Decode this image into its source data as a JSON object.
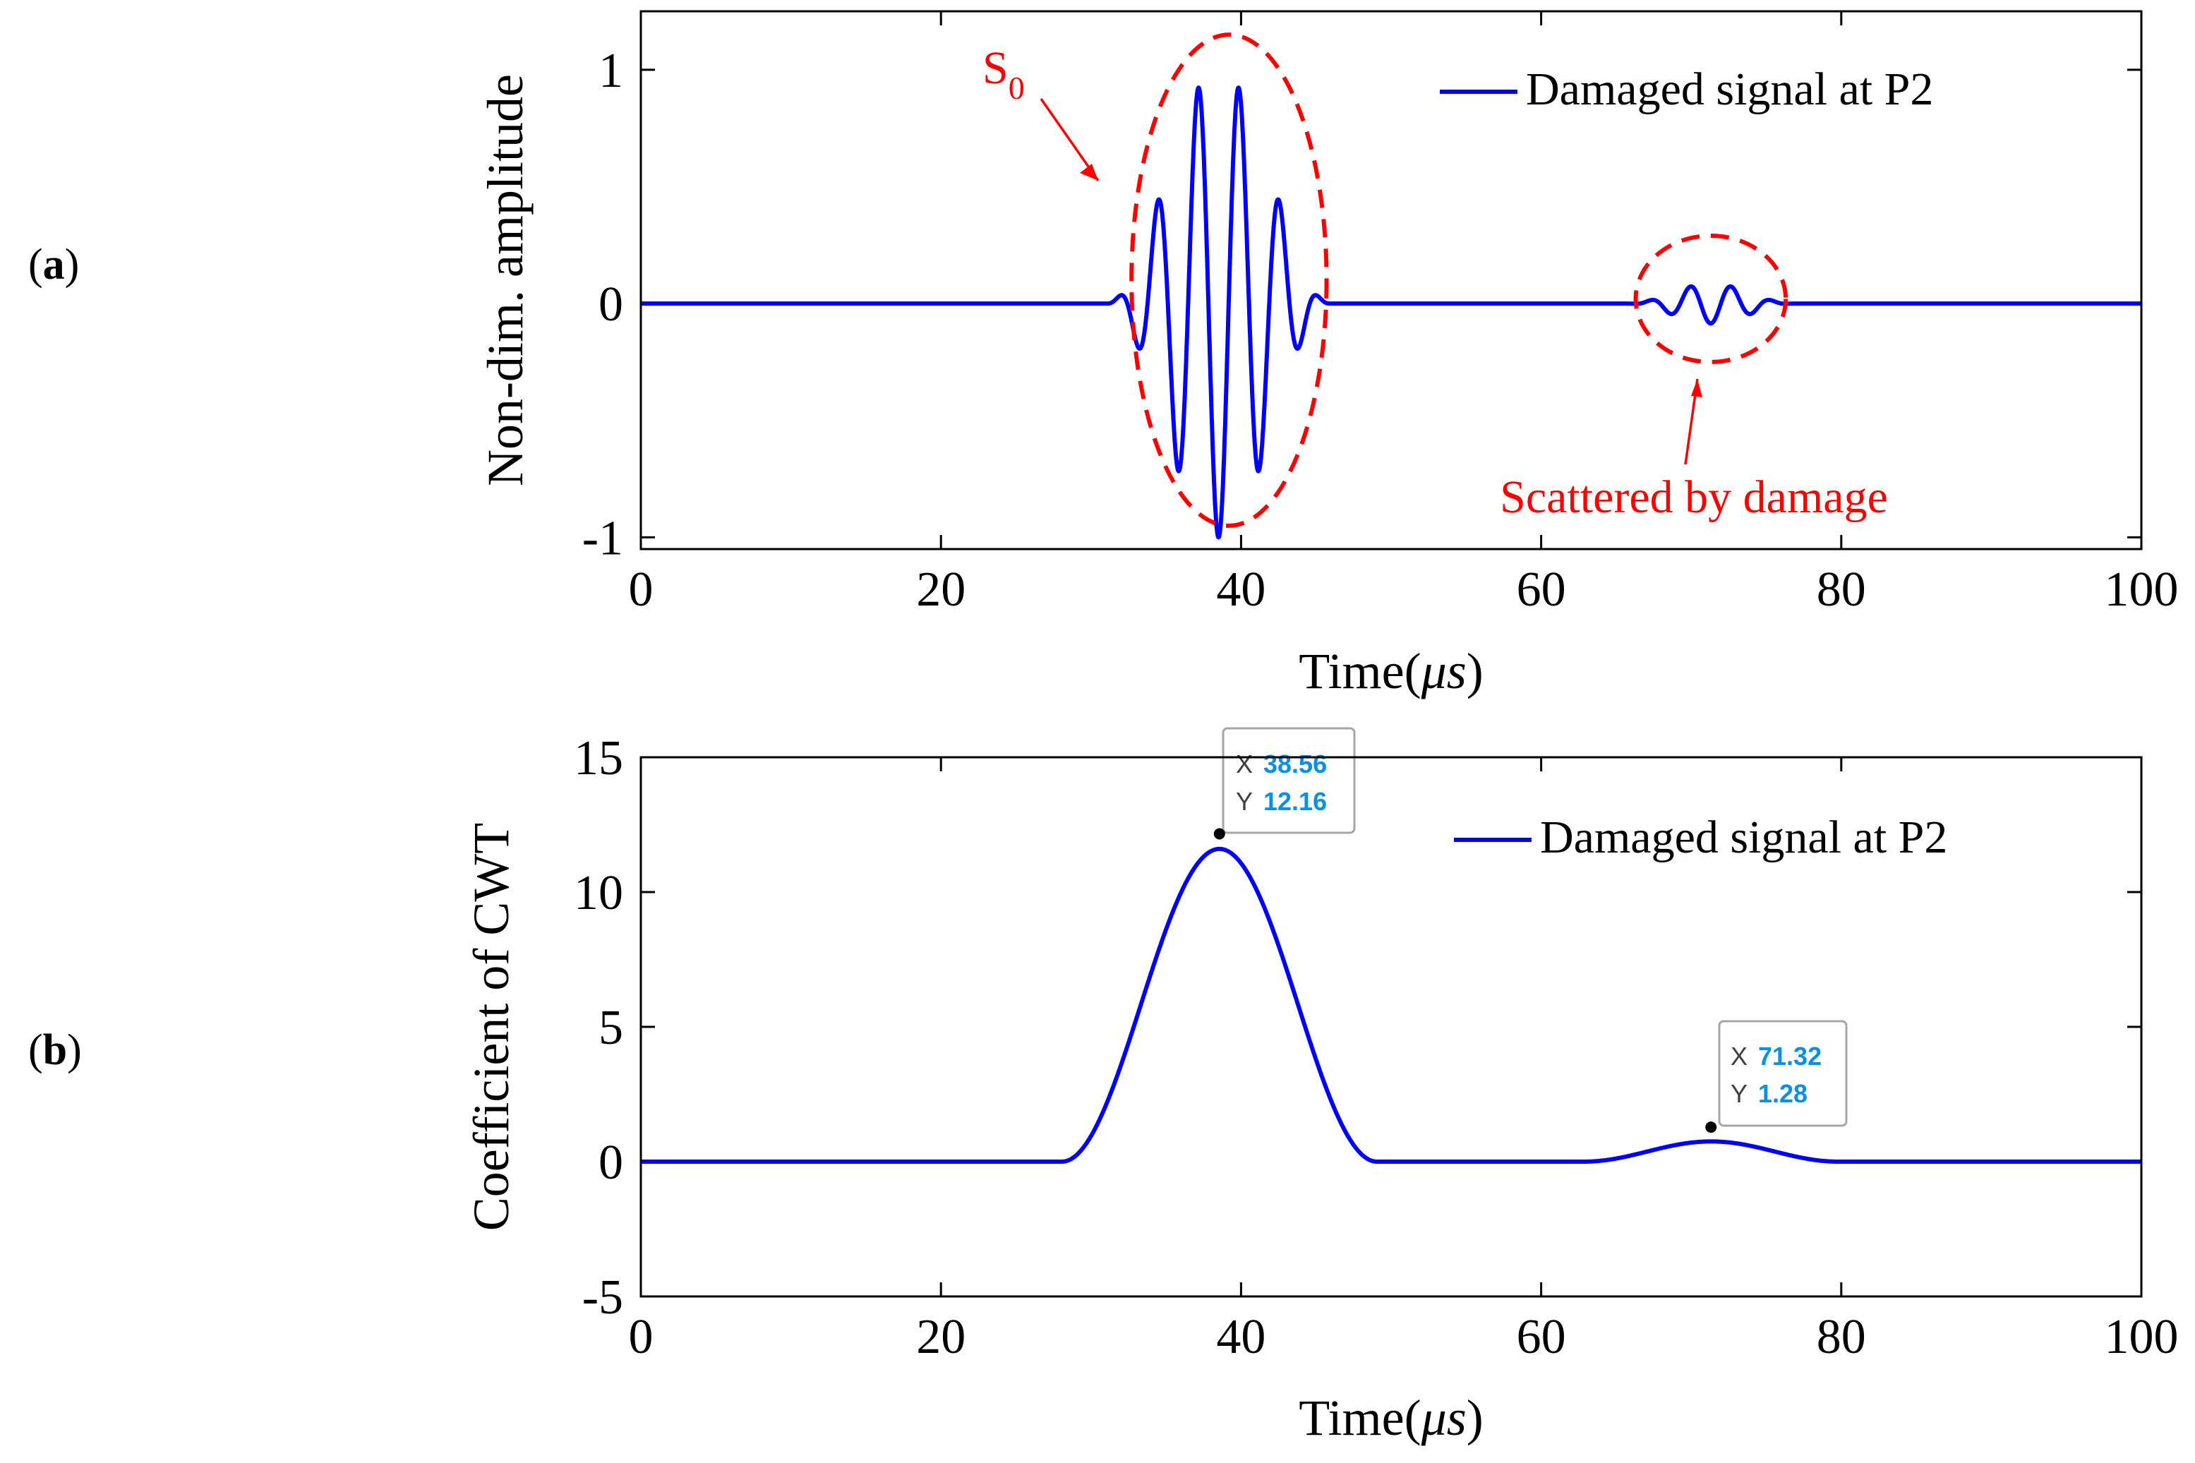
{
  "panels": [
    {
      "label_open": "(",
      "label_letter": "a",
      "label_close": ")",
      "chart_data": {
        "type": "line",
        "title": "",
        "xlabel_text": "Time(",
        "xlabel_unit": "μs",
        "xlabel_close": ")",
        "ylabel": "Non-dim. amplitude",
        "xlim": [
          0,
          100
        ],
        "ylim": [
          -1.05,
          1.25
        ],
        "xticks": [
          0,
          20,
          40,
          60,
          80,
          100
        ],
        "xtick_labels": [
          "0",
          "20",
          "40",
          "60",
          "80",
          "100"
        ],
        "yticks": [
          -1,
          0,
          1
        ],
        "ytick_labels": [
          "-1",
          "0",
          "1"
        ],
        "grid": false,
        "legend_position": "top-right",
        "series": [
          {
            "name": "Damaged signal at P2",
            "color": "#0000ff",
            "packets": [
              {
                "center": 38.5,
                "amplitude": 1.0,
                "frequency": 0.37,
                "half_width": 7.5
              },
              {
                "center": 71.3,
                "amplitude": 0.085,
                "frequency": 0.37,
                "half_width": 5.5
              }
            ]
          }
        ],
        "annotations": [
          {
            "text_main": "S",
            "text_sub": "0",
            "color": "#ff0000",
            "target": "first wave packet",
            "center_x": 39.2,
            "center_y": 0.1,
            "radius_x": 6.5,
            "radius_y": 1.05
          },
          {
            "text": "Scattered by damage",
            "color": "#ff0000",
            "target": "second wave packet",
            "center_x": 71.3,
            "center_y": 0.02,
            "radius_x": 5.0,
            "radius_y": 0.27
          }
        ]
      }
    },
    {
      "label_open": "(",
      "label_letter": "b",
      "label_close": ")",
      "chart_data": {
        "type": "line",
        "title": "",
        "xlabel_text": "Time(",
        "xlabel_unit": "μs",
        "xlabel_close": ")",
        "ylabel": "Coefficient of CWT",
        "xlim": [
          0,
          100
        ],
        "ylim": [
          -5,
          15
        ],
        "xticks": [
          0,
          20,
          40,
          60,
          80,
          100
        ],
        "xtick_labels": [
          "0",
          "20",
          "40",
          "60",
          "80",
          "100"
        ],
        "yticks": [
          -5,
          0,
          5,
          10,
          15
        ],
        "ytick_labels": [
          "-5",
          "0",
          "5",
          "10",
          "15"
        ],
        "grid": false,
        "legend_position": "top-right",
        "series": [
          {
            "name": "Damaged signal at P2",
            "color": "#0000ff",
            "peaks": [
              {
                "center": 38.56,
                "height": 11.6,
                "half_width": 10.5
              },
              {
                "center": 71.32,
                "height": 0.75,
                "half_width": 8.5
              }
            ]
          }
        ],
        "datatips": [
          {
            "x_label": "X",
            "x_value": "38.56",
            "y_label": "Y",
            "y_value": "12.16",
            "x": 38.56,
            "y": 12.16
          },
          {
            "x_label": "X",
            "x_value": "71.32",
            "y_label": "Y",
            "y_value": "1.28",
            "x": 71.32,
            "y": 1.28
          }
        ]
      }
    }
  ],
  "colors": {
    "line": "#0000ff",
    "annotation": "#ff0000",
    "datatip_value": "#0a8fe8",
    "axis": "#000000"
  }
}
